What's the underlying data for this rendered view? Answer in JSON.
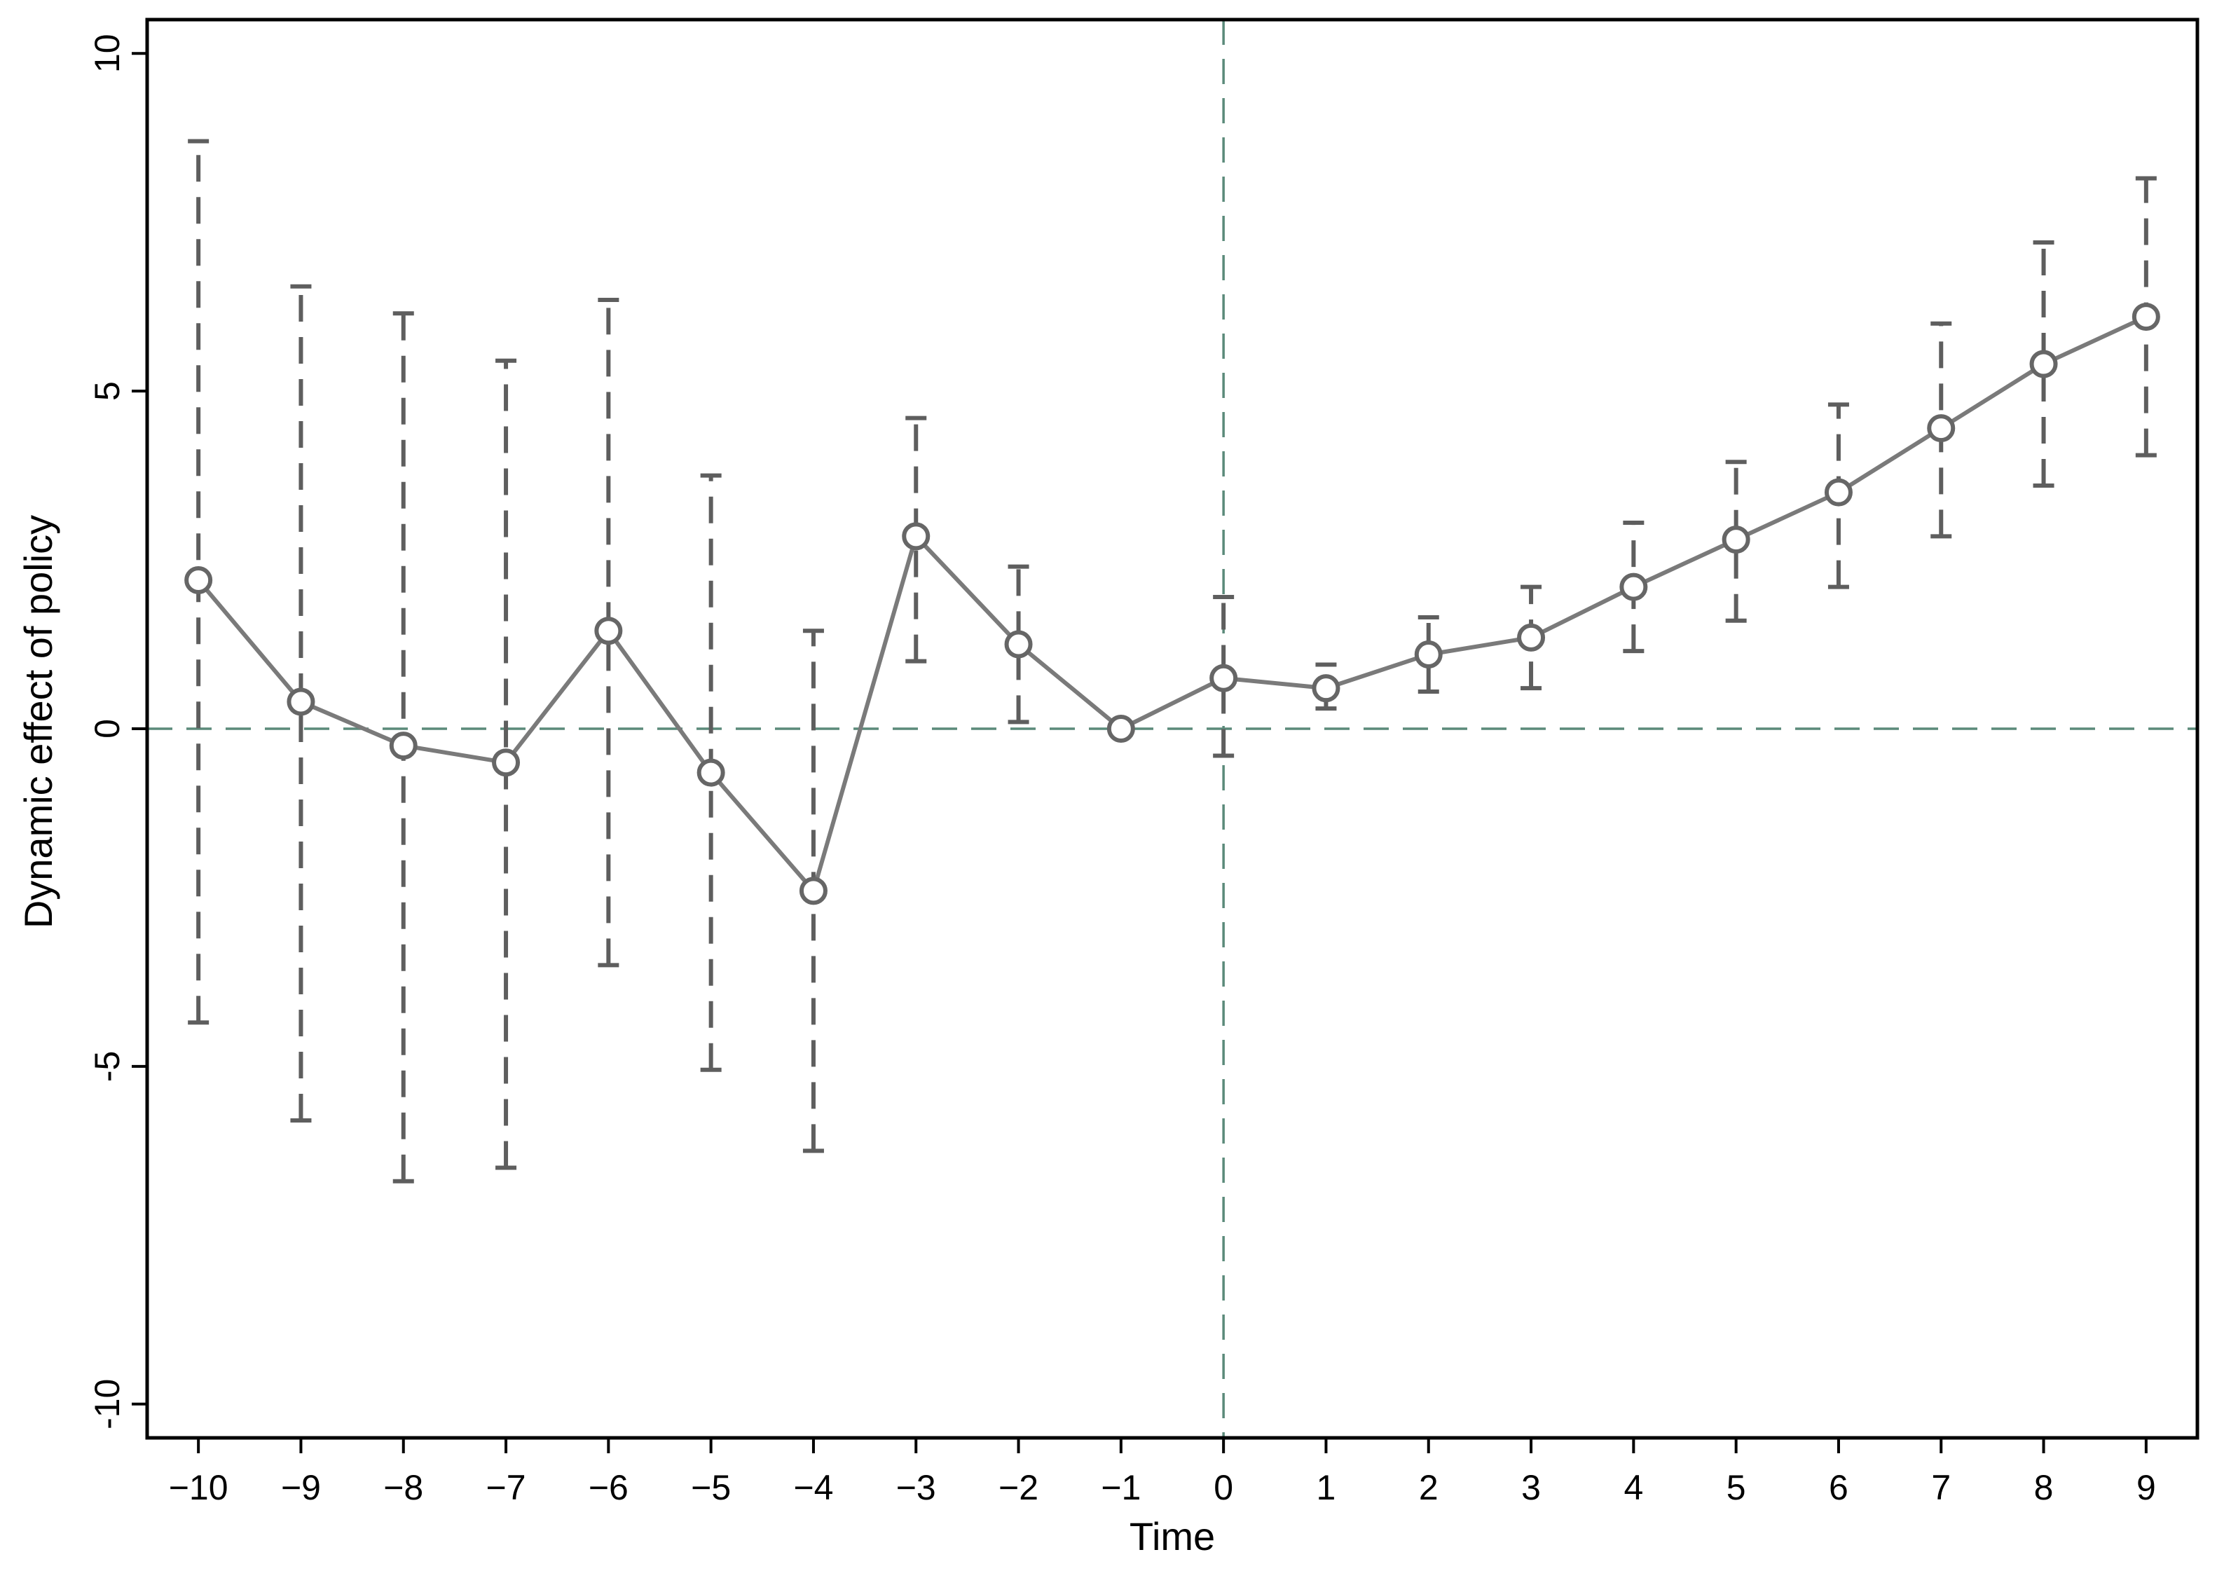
{
  "chart_data": {
    "type": "line",
    "title": "",
    "xlabel": "Time",
    "ylabel": "Dynamic effect of policy",
    "x": [
      -10,
      -9,
      -8,
      -7,
      -6,
      -5,
      -4,
      -3,
      -2,
      -1,
      0,
      1,
      2,
      3,
      4,
      5,
      6,
      7,
      8,
      9
    ],
    "x_tick_labels": [
      "−10",
      "−9",
      "−8",
      "−7",
      "−6",
      "−5",
      "−4",
      "−3",
      "−2",
      "−1",
      "0",
      "1",
      "2",
      "3",
      "4",
      "5",
      "6",
      "7",
      "8",
      "9"
    ],
    "y_ticks": [
      -10,
      -5,
      0,
      5,
      10
    ],
    "y_tick_labels": [
      "-10",
      "-5",
      "0",
      "5",
      "10"
    ],
    "xlim": [
      -10.5,
      9.5
    ],
    "ylim": [
      -10.5,
      10.5
    ],
    "series": [
      {
        "values": [
          2.2,
          0.4,
          -0.25,
          -0.5,
          1.45,
          -0.65,
          -2.4,
          2.85,
          1.25,
          0.0,
          0.75,
          0.6,
          1.1,
          1.35,
          2.1,
          2.8,
          3.5,
          4.45,
          5.4,
          6.1
        ],
        "ci_lower": [
          -4.35,
          -5.8,
          -6.7,
          -6.5,
          -3.5,
          -5.05,
          -6.25,
          1.0,
          0.1,
          0.0,
          -0.4,
          0.3,
          0.55,
          0.6,
          1.15,
          1.6,
          2.1,
          2.85,
          3.6,
          4.05
        ],
        "ci_upper": [
          8.7,
          6.55,
          6.15,
          5.45,
          6.35,
          3.75,
          1.45,
          4.6,
          2.4,
          0.0,
          1.95,
          0.95,
          1.65,
          2.1,
          3.05,
          3.95,
          4.8,
          6.0,
          7.2,
          8.15
        ]
      }
    ],
    "reference_lines": {
      "horizontal_y": 0,
      "vertical_x": 0
    },
    "grid": false,
    "legend": "none",
    "colors": {
      "line": "#7a7a7a",
      "marker": "#666666",
      "error_bar": "#5e5e5e",
      "reference": "#5b8a7a",
      "axis": "#000000"
    }
  }
}
